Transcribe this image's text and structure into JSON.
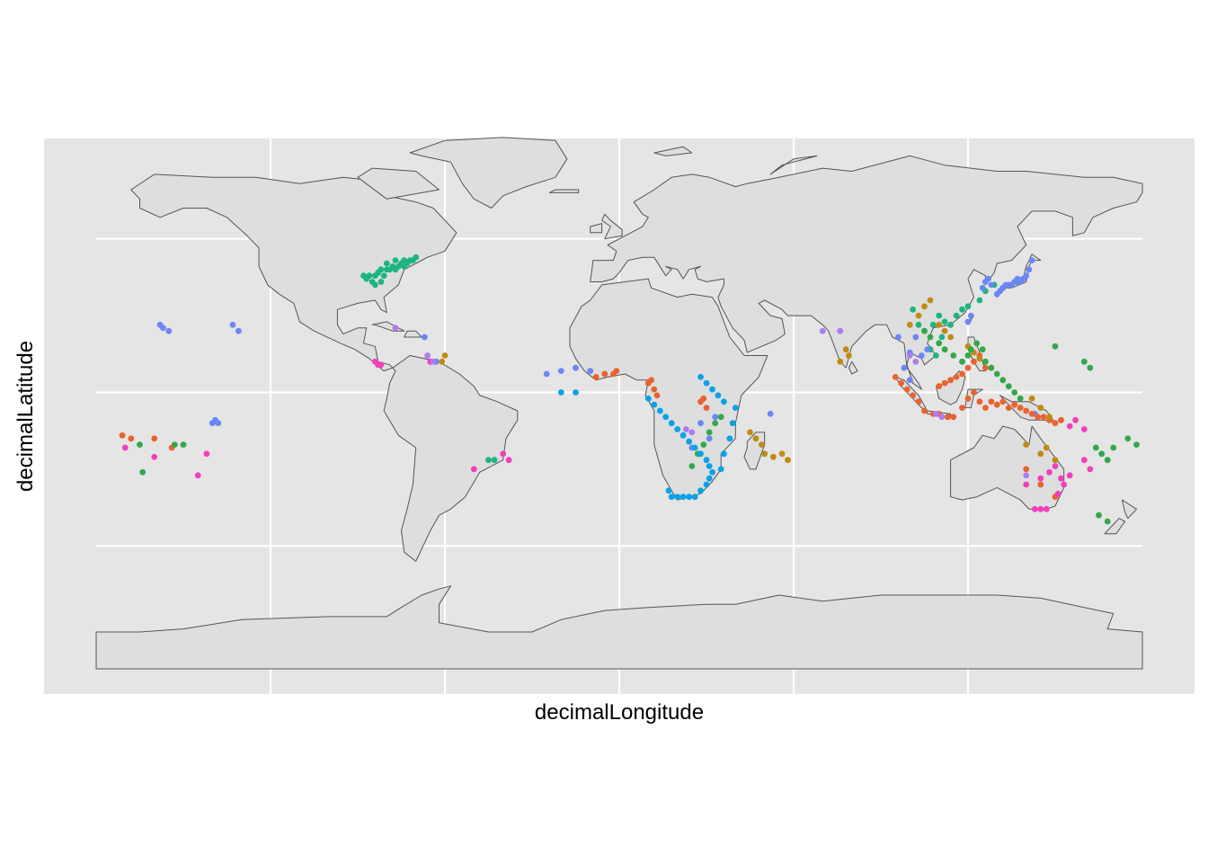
{
  "chart_data": {
    "type": "scatter",
    "title": "",
    "xlabel": "decimalLongitude",
    "ylabel": "decimalLatitude",
    "xlim": [
      -180,
      180
    ],
    "ylim": [
      -90,
      90
    ],
    "grid": true,
    "x_gridlines": [
      -120,
      -60,
      0,
      60,
      120
    ],
    "y_gridlines": [
      -50,
      0,
      50
    ],
    "legend": "none",
    "colors": {
      "panel_background": "#e5e5e5",
      "gridline": "#ffffff",
      "land_fill": "#dedede",
      "land_stroke": "#555555"
    },
    "series": [
      {
        "color": "#1cb57f",
        "points": [
          [
            -87,
            37
          ],
          [
            -86,
            38
          ],
          [
            -85,
            36
          ],
          [
            -84,
            38
          ],
          [
            -83,
            39
          ],
          [
            -82,
            40
          ],
          [
            -81,
            38
          ],
          [
            -80,
            40
          ],
          [
            -79,
            40
          ],
          [
            -78,
            41
          ],
          [
            -77,
            40
          ],
          [
            -76,
            41
          ],
          [
            -75,
            42
          ],
          [
            -74,
            41
          ],
          [
            -73,
            42
          ],
          [
            -72,
            43
          ],
          [
            -71,
            43
          ],
          [
            -88,
            38
          ],
          [
            -84,
            35
          ],
          [
            -82,
            36
          ],
          [
            -80,
            42
          ],
          [
            -77,
            43
          ],
          [
            -74,
            43
          ],
          [
            -70,
            44
          ],
          [
            -45,
            -22
          ],
          [
            -43,
            -22
          ],
          [
            101,
            27
          ],
          [
            103,
            22
          ],
          [
            105,
            20
          ],
          [
            108,
            22
          ],
          [
            110,
            25
          ],
          [
            112,
            23
          ],
          [
            114,
            22
          ],
          [
            116,
            25
          ],
          [
            118,
            27
          ],
          [
            120,
            28
          ],
          [
            107,
            14
          ],
          [
            109,
            12
          ],
          [
            111,
            18
          ],
          [
            124,
            30
          ],
          [
            126,
            33
          ],
          [
            129,
            35
          ],
          [
            132,
            34
          ],
          [
            137,
            36
          ]
        ]
      },
      {
        "color": "#6b86f6",
        "points": [
          [
            -158,
            22
          ],
          [
            -157,
            21
          ],
          [
            -155,
            20
          ],
          [
            -140,
            -10
          ],
          [
            -139,
            -9
          ],
          [
            -138,
            -10
          ],
          [
            -133,
            22
          ],
          [
            -131,
            20
          ],
          [
            -67,
            18
          ],
          [
            -63,
            10
          ],
          [
            -25,
            6
          ],
          [
            -20,
            7
          ],
          [
            -15,
            8
          ],
          [
            -10,
            7
          ],
          [
            -5,
            6
          ],
          [
            130,
            32
          ],
          [
            131,
            33
          ],
          [
            132,
            34
          ],
          [
            133,
            35
          ],
          [
            134,
            35
          ],
          [
            135,
            35
          ],
          [
            136,
            36
          ],
          [
            137,
            37
          ],
          [
            138,
            36
          ],
          [
            139,
            37
          ],
          [
            140,
            38
          ],
          [
            141,
            40
          ],
          [
            142,
            43
          ],
          [
            128,
            35
          ],
          [
            127,
            37
          ],
          [
            126,
            36
          ],
          [
            125,
            34
          ],
          [
            121,
            25
          ],
          [
            120,
            23
          ],
          [
            104,
            12
          ],
          [
            106,
            14
          ],
          [
            102,
            18
          ],
          [
            100,
            13
          ],
          [
            96,
            18
          ],
          [
            98,
            8
          ],
          [
            100,
            4
          ],
          [
            33,
            -8
          ],
          [
            31,
            -15
          ],
          [
            28,
            -10
          ],
          [
            25,
            -18
          ],
          [
            52,
            -7
          ],
          [
            143,
            -7
          ]
        ]
      },
      {
        "color": "#e9632e",
        "points": [
          [
            -171,
            -14
          ],
          [
            -168,
            -15
          ],
          [
            -160,
            -15
          ],
          [
            -154,
            -18
          ],
          [
            -5,
            6
          ],
          [
            -8,
            5
          ],
          [
            -2,
            6
          ],
          [
            -1,
            7
          ],
          [
            10,
            3
          ],
          [
            11,
            4
          ],
          [
            12,
            1
          ],
          [
            13,
            -1
          ],
          [
            28,
            -3
          ],
          [
            29,
            -2
          ],
          [
            30,
            -5
          ],
          [
            105,
            -6
          ],
          [
            108,
            -7
          ],
          [
            110,
            -7
          ],
          [
            113,
            -8
          ],
          [
            115,
            -8
          ],
          [
            118,
            -5
          ],
          [
            120,
            -2
          ],
          [
            122,
            0
          ],
          [
            124,
            -3
          ],
          [
            126,
            -5
          ],
          [
            128,
            -3
          ],
          [
            130,
            -4
          ],
          [
            132,
            -3
          ],
          [
            134,
            -5
          ],
          [
            136,
            -4
          ],
          [
            138,
            -5
          ],
          [
            140,
            -6
          ],
          [
            142,
            -7
          ],
          [
            144,
            -8
          ],
          [
            146,
            -8
          ],
          [
            148,
            -9
          ],
          [
            150,
            -10
          ],
          [
            152,
            -9
          ],
          [
            95,
            5
          ],
          [
            97,
            3
          ],
          [
            99,
            1
          ],
          [
            101,
            -1
          ],
          [
            103,
            -3
          ],
          [
            110,
            2
          ],
          [
            112,
            3
          ],
          [
            114,
            4
          ],
          [
            116,
            5
          ],
          [
            118,
            6
          ],
          [
            120,
            8
          ],
          [
            122,
            10
          ],
          [
            124,
            12
          ],
          [
            126,
            8
          ],
          [
            140,
            -25
          ],
          [
            145,
            -30
          ],
          [
            150,
            -34
          ]
        ]
      },
      {
        "color": "#c08b12",
        "points": [
          [
            -60,
            12
          ],
          [
            -61,
            10
          ],
          [
            45,
            -13
          ],
          [
            47,
            -15
          ],
          [
            49,
            -17
          ],
          [
            50,
            -20
          ],
          [
            53,
            -21
          ],
          [
            56,
            -20
          ],
          [
            58,
            -22
          ],
          [
            142,
            -2
          ],
          [
            145,
            -5
          ],
          [
            148,
            -8
          ],
          [
            79,
            12
          ],
          [
            78,
            14
          ],
          [
            76,
            10
          ],
          [
            100,
            22
          ],
          [
            103,
            25
          ],
          [
            105,
            28
          ],
          [
            107,
            30
          ],
          [
            110,
            22
          ],
          [
            112,
            20
          ],
          [
            114,
            18
          ],
          [
            120,
            15
          ],
          [
            122,
            13
          ],
          [
            124,
            11
          ],
          [
            140,
            -17
          ],
          [
            145,
            -20
          ],
          [
            147,
            -18
          ],
          [
            150,
            -22
          ]
        ]
      },
      {
        "color": "#33a84a",
        "points": [
          [
            -165,
            -17
          ],
          [
            -164,
            -26
          ],
          [
            -153,
            -17
          ],
          [
            -150,
            -17
          ],
          [
            25,
            -24
          ],
          [
            27,
            -20
          ],
          [
            29,
            -17
          ],
          [
            31,
            -13
          ],
          [
            33,
            -10
          ],
          [
            35,
            -8
          ],
          [
            105,
            20
          ],
          [
            107,
            18
          ],
          [
            110,
            16
          ],
          [
            112,
            14
          ],
          [
            115,
            12
          ],
          [
            118,
            10
          ],
          [
            120,
            12
          ],
          [
            121,
            14
          ],
          [
            123,
            16
          ],
          [
            125,
            14
          ],
          [
            126,
            10
          ],
          [
            128,
            8
          ],
          [
            130,
            6
          ],
          [
            132,
            4
          ],
          [
            134,
            2
          ],
          [
            136,
            0
          ],
          [
            138,
            -2
          ],
          [
            150,
            15
          ],
          [
            160,
            10
          ],
          [
            162,
            8
          ],
          [
            164,
            -18
          ],
          [
            166,
            -20
          ],
          [
            168,
            -22
          ],
          [
            170,
            -18
          ],
          [
            175,
            -15
          ],
          [
            178,
            -17
          ],
          [
            165,
            -40
          ],
          [
            168,
            -42
          ]
        ]
      },
      {
        "color": "#0aa2e8",
        "points": [
          [
            -20,
            0
          ],
          [
            -15,
            0
          ],
          [
            10,
            -2
          ],
          [
            12,
            -4
          ],
          [
            14,
            -6
          ],
          [
            16,
            -8
          ],
          [
            18,
            -10
          ],
          [
            20,
            -12
          ],
          [
            22,
            -14
          ],
          [
            24,
            -16
          ],
          [
            26,
            -18
          ],
          [
            28,
            -20
          ],
          [
            30,
            -22
          ],
          [
            31,
            -24
          ],
          [
            32,
            -26
          ],
          [
            31,
            -28
          ],
          [
            30,
            -30
          ],
          [
            28,
            -32
          ],
          [
            26,
            -34
          ],
          [
            24,
            -34
          ],
          [
            22,
            -34
          ],
          [
            20,
            -34
          ],
          [
            18,
            -34
          ],
          [
            17,
            -32
          ],
          [
            35,
            -25
          ],
          [
            36,
            -20
          ],
          [
            38,
            -15
          ],
          [
            39,
            -10
          ],
          [
            40,
            -5
          ],
          [
            36,
            -3
          ],
          [
            34,
            -1
          ],
          [
            32,
            1
          ],
          [
            30,
            3
          ],
          [
            28,
            5
          ]
        ]
      },
      {
        "color": "#f13fbd",
        "points": [
          [
            -170,
            -18
          ],
          [
            -160,
            -21
          ],
          [
            -145,
            -27
          ],
          [
            -142,
            -20
          ],
          [
            -84,
            10
          ],
          [
            -83,
            9
          ],
          [
            -82,
            9
          ],
          [
            -65,
            10
          ],
          [
            -40,
            -20
          ],
          [
            -38,
            -22
          ],
          [
            -50,
            -25
          ],
          [
            140,
            -30
          ],
          [
            145,
            -28
          ],
          [
            148,
            -26
          ],
          [
            150,
            -24
          ],
          [
            152,
            -28
          ],
          [
            153,
            -30
          ],
          [
            151,
            -33
          ],
          [
            147,
            -38
          ],
          [
            145,
            -38
          ],
          [
            143,
            -38
          ],
          [
            155,
            -27
          ],
          [
            160,
            -22
          ],
          [
            162,
            -25
          ],
          [
            160,
            -12
          ],
          [
            157,
            -9
          ],
          [
            155,
            -11
          ]
        ]
      },
      {
        "color": "#ad7cf3",
        "points": [
          [
            -77,
            21
          ],
          [
            -66,
            12
          ],
          [
            -64,
            10
          ],
          [
            23,
            -12
          ],
          [
            25,
            -13
          ],
          [
            109,
            -7
          ],
          [
            111,
            -8
          ],
          [
            140,
            -27
          ],
          [
            70,
            20
          ],
          [
            76,
            20
          ],
          [
            100,
            12
          ],
          [
            102,
            10
          ]
        ]
      }
    ]
  }
}
